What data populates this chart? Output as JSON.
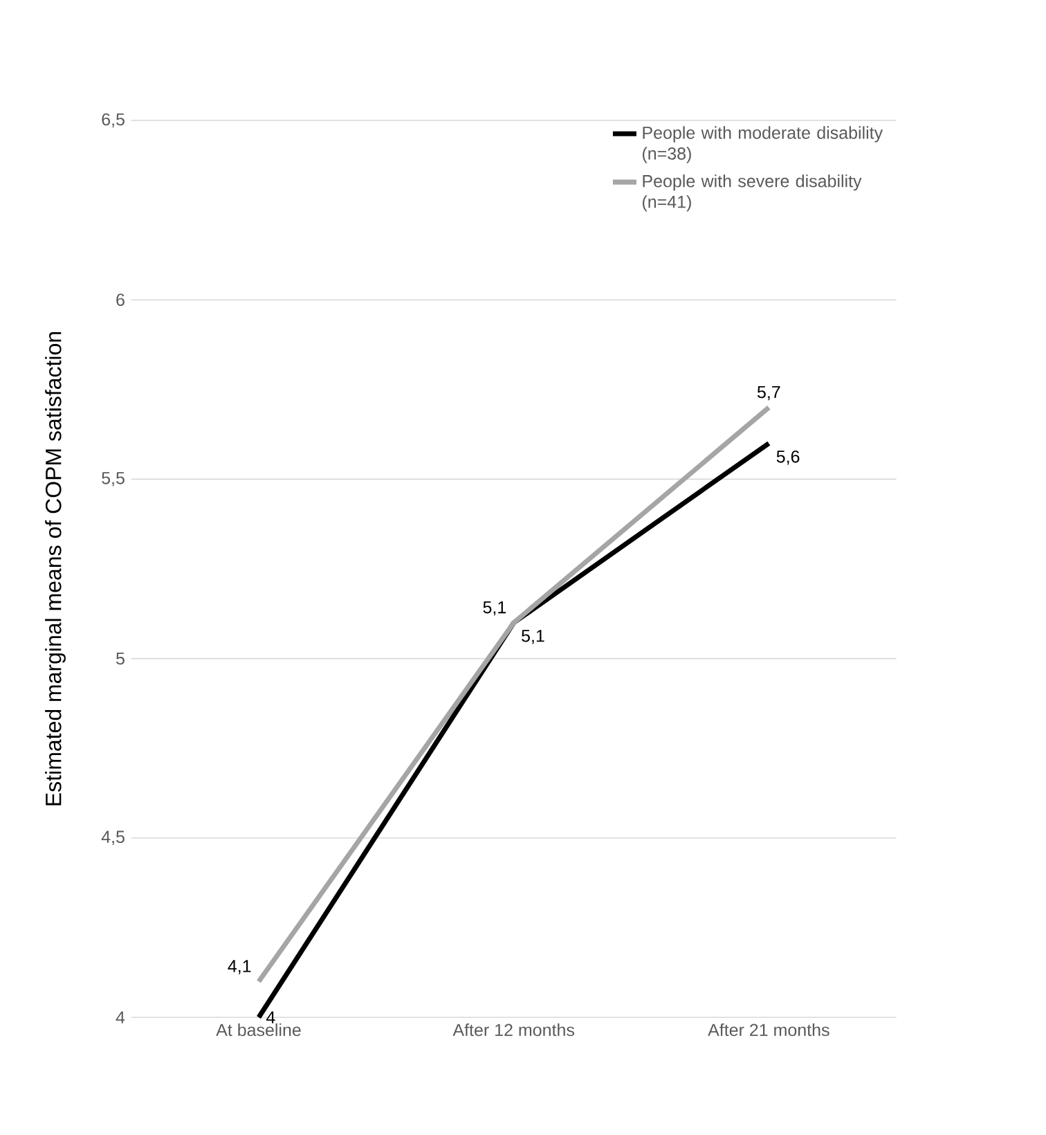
{
  "chart_data": {
    "type": "line",
    "ylabel": "Estimated marginal means of COPM satisfaction",
    "categories": [
      "At baseline",
      "After 12 months",
      "After 21 months"
    ],
    "series": [
      {
        "name": "People with moderate disability (n=38)",
        "color": "#000000",
        "values": [
          4,
          5.1,
          5.6
        ],
        "value_labels": [
          "4",
          "5,1",
          "5,6"
        ]
      },
      {
        "name": "People with severe disability (n=41)",
        "color": "#a5a5a5",
        "values": [
          4.1,
          5.1,
          5.7
        ],
        "value_labels": [
          "4,1",
          "5,1",
          "5,7"
        ]
      }
    ],
    "ylim": [
      4,
      6.5
    ],
    "yticks": [
      4,
      {
        "value": 4.5,
        "label": "4,5"
      },
      5,
      {
        "value": 5.5,
        "label": "5,5"
      },
      6,
      {
        "value": 6.5,
        "label": "6,5"
      }
    ],
    "grid": "y",
    "legend": "top right"
  }
}
